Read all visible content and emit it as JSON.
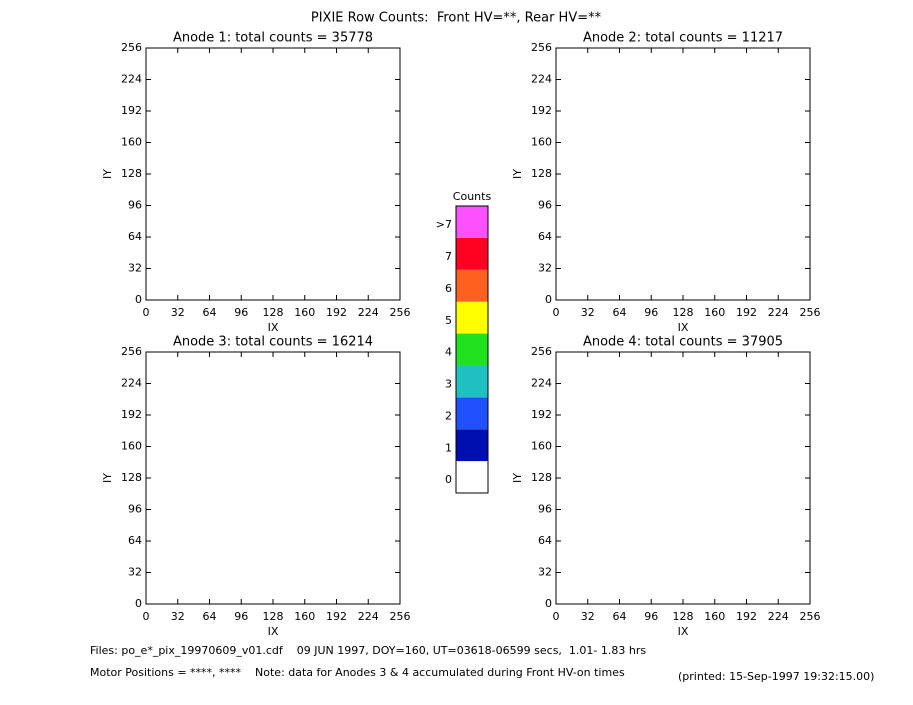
{
  "title": "PIXIE Row Counts:  Front HV=**, Rear HV=**",
  "chart_data": [
    {
      "type": "heatmap",
      "title": "Anode 1: total counts = 35778",
      "xlabel": "IX",
      "ylabel": "IY",
      "xlim": [
        0,
        256
      ],
      "ylim": [
        0,
        256
      ],
      "xticks": [
        0,
        32,
        64,
        96,
        128,
        160,
        192,
        224,
        256
      ],
      "yticks": [
        0,
        32,
        64,
        96,
        128,
        160,
        192,
        224,
        256
      ]
    },
    {
      "type": "heatmap",
      "title": "Anode 2: total counts = 11217",
      "xlabel": "IX",
      "ylabel": "IY",
      "xlim": [
        0,
        256
      ],
      "ylim": [
        0,
        256
      ],
      "xticks": [
        0,
        32,
        64,
        96,
        128,
        160,
        192,
        224,
        256
      ],
      "yticks": [
        0,
        32,
        64,
        96,
        128,
        160,
        192,
        224,
        256
      ]
    },
    {
      "type": "heatmap",
      "title": "Anode 3: total counts = 16214",
      "xlabel": "IX",
      "ylabel": "IY",
      "xlim": [
        0,
        256
      ],
      "ylim": [
        0,
        256
      ],
      "xticks": [
        0,
        32,
        64,
        96,
        128,
        160,
        192,
        224,
        256
      ],
      "yticks": [
        0,
        32,
        64,
        96,
        128,
        160,
        192,
        224,
        256
      ]
    },
    {
      "type": "heatmap",
      "title": "Anode 4: total counts = 37905",
      "xlabel": "IX",
      "ylabel": "IY",
      "xlim": [
        0,
        256
      ],
      "ylim": [
        0,
        256
      ],
      "xticks": [
        0,
        32,
        64,
        96,
        128,
        160,
        192,
        224,
        256
      ],
      "yticks": [
        0,
        32,
        64,
        96,
        128,
        160,
        192,
        224,
        256
      ]
    }
  ],
  "colorbar": {
    "title": "Counts",
    "categories": [
      "0",
      "1",
      "2",
      "3",
      "4",
      "5",
      "6",
      "7",
      ">7"
    ],
    "colors": [
      "#ffffff",
      "#0010b0",
      "#2050ff",
      "#20c0c0",
      "#20e020",
      "#ffff00",
      "#ff6020",
      "#ff0020",
      "#ff50ff"
    ]
  },
  "footer": {
    "files": "Files: po_e*_pix_19970609_v01.cdf    09 JUN 1997, DOY=160, UT=03618-06599 secs,  1.01- 1.83 hrs",
    "motor": "Motor Positions = ****, ****    Note: data for Anodes 3 & 4 accumulated during Front HV-on times",
    "printed": "(printed: 15-Sep-1997 19:32:15.00)"
  }
}
